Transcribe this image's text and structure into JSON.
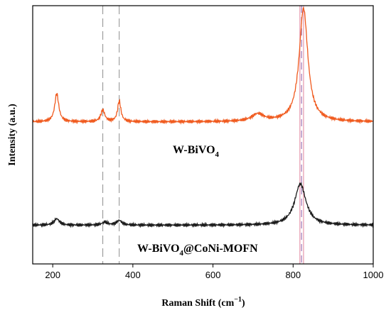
{
  "chart_data": {
    "type": "line",
    "xlabel": "Raman Shift (cm",
    "xlabel_sup": "−1",
    "xlabel_tail": ")",
    "ylabel": "Intensity (a.u.)",
    "xlim": [
      150,
      1000
    ],
    "xticks": [
      200,
      400,
      600,
      800,
      1000
    ],
    "y_ticks_labeled": false,
    "grid": false,
    "reference_lines": {
      "gray_dashed": [
        325,
        366
      ],
      "pink": [
        817,
        826
      ],
      "purple_dashed": [
        821
      ]
    },
    "series": [
      {
        "name": "W-BiVO4",
        "label_base": "W-BiVO",
        "label_sub": "4",
        "color": "#f05a1e",
        "baseline": 0.55,
        "peaks": [
          {
            "center": 210,
            "height": 0.11,
            "width": 6
          },
          {
            "center": 325,
            "height": 0.045,
            "width": 6
          },
          {
            "center": 366,
            "height": 0.08,
            "width": 5
          },
          {
            "center": 712,
            "height": 0.028,
            "width": 18
          },
          {
            "center": 826,
            "height": 0.44,
            "width": 13
          }
        ]
      },
      {
        "name": "W-BiVO4@CoNi-MOFN",
        "label_base": "W-BiVO",
        "label_sub": "4",
        "label_tail": "@CoNi-MOFN",
        "color": "#1a1a1a",
        "baseline": 0.15,
        "peaks": [
          {
            "center": 210,
            "height": 0.025,
            "width": 8
          },
          {
            "center": 330,
            "height": 0.012,
            "width": 8
          },
          {
            "center": 366,
            "height": 0.018,
            "width": 8
          },
          {
            "center": 818,
            "height": 0.16,
            "width": 17
          }
        ]
      }
    ]
  }
}
